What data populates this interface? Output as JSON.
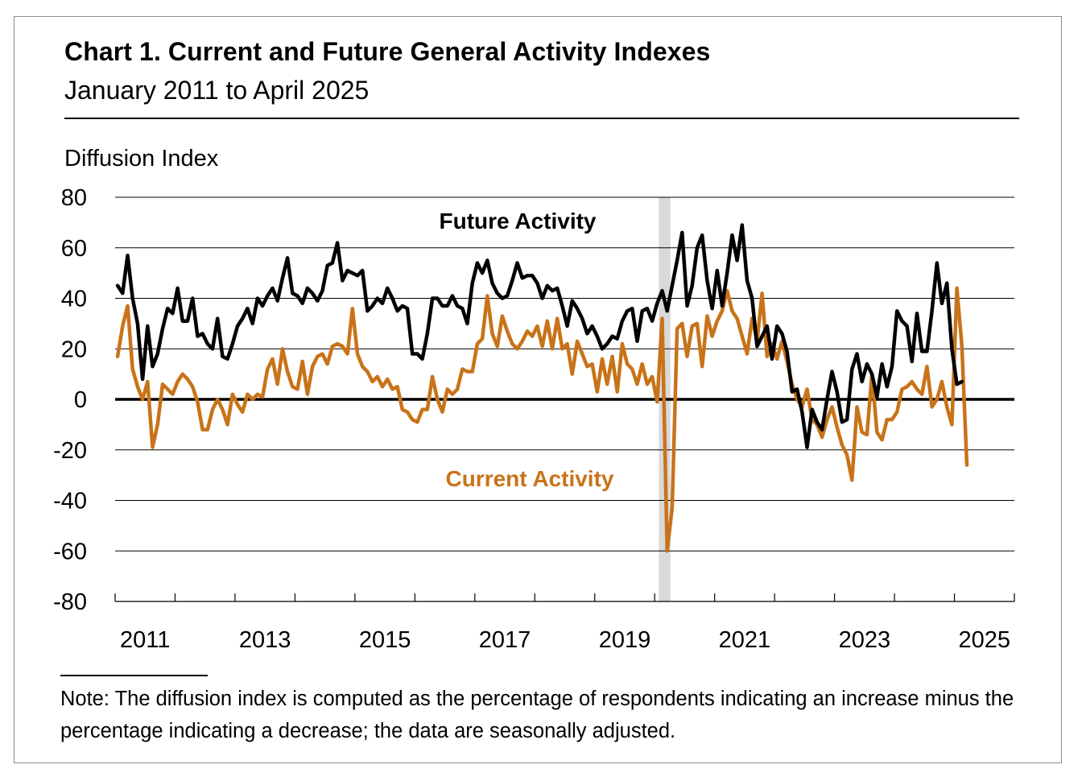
{
  "header": {
    "title": "Chart 1. Current and Future General Activity Indexes",
    "subtitle": "January 2011 to April 2025"
  },
  "note": "Note: The diffusion index is computed as the percentage of respondents indicating an increase minus the percentage indicating a decrease; the data are seasonally adjusted.",
  "colors": {
    "future": "#000000",
    "current": "#c87319",
    "recession_band": "#d9d9d9",
    "grid": "#000000"
  },
  "chart_data": {
    "type": "line",
    "ylabel": "Diffusion Index",
    "ylim": [
      -80,
      80
    ],
    "yticks": [
      80,
      60,
      40,
      20,
      0,
      -20,
      -40,
      -60,
      -80
    ],
    "xlim": [
      "2011-01",
      "2025-12"
    ],
    "xtick_labels": [
      "2011",
      "2013",
      "2015",
      "2017",
      "2019",
      "2021",
      "2023",
      "2025"
    ],
    "grid": true,
    "shaded_period": {
      "start": "2020-02",
      "end": "2020-04"
    },
    "series": [
      {
        "name": "Future Activity",
        "color": "#000000",
        "start": "2011-01",
        "values": [
          45,
          42,
          57,
          40,
          30,
          8,
          29,
          13,
          18,
          28,
          36,
          34,
          44,
          31,
          31,
          40,
          25,
          26,
          22,
          20,
          32,
          17,
          16,
          22,
          29,
          32,
          36,
          30,
          40,
          37,
          41,
          44,
          39,
          48,
          56,
          42,
          41,
          38,
          44,
          42,
          39,
          43,
          53,
          54,
          62,
          47,
          51,
          50,
          49,
          51,
          35,
          37,
          40,
          38,
          44,
          40,
          35,
          37,
          36,
          18,
          18,
          16,
          26,
          40,
          40,
          37,
          37,
          41,
          37,
          36,
          30,
          46,
          54,
          50,
          55,
          46,
          42,
          40,
          41,
          47,
          54,
          48,
          49,
          49,
          46,
          40,
          45,
          43,
          44,
          37,
          29,
          39,
          36,
          32,
          26,
          29,
          25,
          20,
          22,
          25,
          24,
          31,
          35,
          36,
          23,
          35,
          36,
          31,
          38,
          43,
          35,
          45,
          55,
          66,
          37,
          45,
          60,
          65,
          47,
          36,
          51,
          37,
          50,
          65,
          55,
          69,
          47,
          40,
          21,
          25,
          29,
          16,
          29,
          26,
          19,
          3,
          4,
          -5,
          -19,
          -4,
          -9,
          -12,
          0,
          11,
          3,
          -9,
          -8,
          12,
          18,
          7,
          14,
          10,
          1,
          14,
          5,
          13,
          35,
          31,
          29,
          15,
          34,
          19,
          19,
          35,
          54,
          38,
          46,
          20,
          6,
          7
        ]
      },
      {
        "name": "Current Activity",
        "color": "#c87319",
        "start": "2011-01",
        "values": [
          17,
          29,
          37,
          12,
          5,
          0,
          7,
          -19,
          -10,
          6,
          4,
          2,
          7,
          10,
          8,
          5,
          -1,
          -12,
          -12,
          -4,
          0,
          -4,
          -10,
          2,
          -2,
          -5,
          2,
          0,
          2,
          1,
          12,
          16,
          6,
          20,
          11,
          5,
          4,
          15,
          2,
          13,
          17,
          18,
          14,
          21,
          22,
          21,
          18,
          36,
          18,
          13,
          11,
          7,
          9,
          5,
          8,
          4,
          5,
          -4,
          -5,
          -8,
          -9,
          -4,
          -4,
          9,
          0,
          -5,
          4,
          2,
          4,
          12,
          11,
          11,
          22,
          24,
          41,
          26,
          21,
          33,
          27,
          22,
          20,
          23,
          27,
          25,
          29,
          21,
          31,
          20,
          32,
          20,
          22,
          10,
          23,
          18,
          13,
          14,
          3,
          16,
          6,
          17,
          3,
          22,
          14,
          12,
          6,
          14,
          6,
          9,
          -1,
          32,
          -60,
          -43,
          28,
          30,
          17,
          29,
          30,
          13,
          33,
          25,
          31,
          35,
          43,
          35,
          32,
          25,
          18,
          32,
          23,
          42,
          17,
          22,
          16,
          23,
          15,
          6,
          0,
          -3,
          4,
          -8,
          -10,
          -15,
          -8,
          -3,
          -11,
          -18,
          -22,
          -32,
          -3,
          -13,
          -14,
          10,
          -13,
          -16,
          -8,
          -8,
          -5,
          4,
          5,
          7,
          4,
          2,
          13,
          -3,
          0,
          7,
          -3,
          -10,
          44,
          21,
          -26
        ]
      }
    ],
    "series_labels": [
      {
        "text": "Future Activity"
      },
      {
        "text": "Current Activity"
      }
    ]
  }
}
